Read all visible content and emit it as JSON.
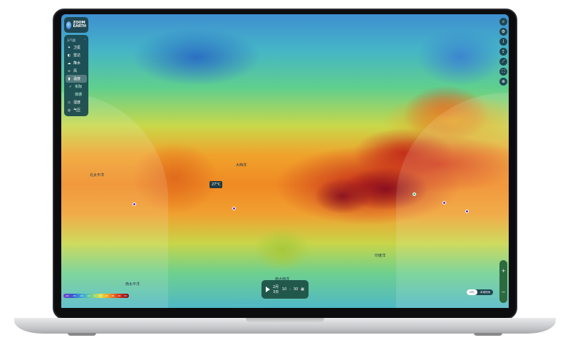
{
  "app": {
    "logo_line1": "ZOOM",
    "logo_line2": "EARTH"
  },
  "sidebar": {
    "header": "天气图",
    "items": [
      {
        "icon": "satellite-icon",
        "glyph": "✦",
        "label": "卫星"
      },
      {
        "icon": "radar-icon",
        "glyph": "◐",
        "label": "雷达"
      },
      {
        "icon": "precipitation-icon",
        "glyph": "☁",
        "label": "降水"
      },
      {
        "icon": "wind-icon",
        "glyph": "≈",
        "label": "风"
      },
      {
        "icon": "thermometer-icon",
        "glyph": "▮",
        "label": "温度",
        "selected": true
      },
      {
        "icon": "check-icon",
        "glyph": "✓",
        "label": "实际",
        "sub": true
      },
      {
        "icon": "",
        "glyph": "",
        "label": "体感",
        "sub": true
      },
      {
        "icon": "humidity-icon",
        "glyph": "◇",
        "label": "湿度"
      },
      {
        "icon": "pressure-icon",
        "glyph": "◎",
        "label": "气压"
      }
    ]
  },
  "right_toolbar": [
    {
      "icon": "search-icon",
      "glyph": "⌕"
    },
    {
      "icon": "settings-icon",
      "glyph": "⚙"
    },
    {
      "icon": "info-icon",
      "glyph": "i"
    },
    {
      "icon": "share-icon",
      "glyph": "⇪"
    },
    {
      "icon": "measure-icon",
      "glyph": "⟋"
    },
    {
      "icon": "fullscreen-icon",
      "glyph": "⛶"
    },
    {
      "icon": "locate-icon",
      "glyph": "⊕"
    }
  ],
  "map": {
    "oceans": {
      "north_pacific": "北太平洋",
      "atlantic": "大西洋",
      "south_pacific": "南太平洋",
      "indian": "印度洋",
      "south_atlantic": "南大西洋"
    },
    "tooltip": "27°C"
  },
  "legend": {
    "ticks": [
      "-40",
      "-30",
      "-20",
      "-10",
      "0",
      "10",
      "20",
      "30",
      "40",
      "50"
    ]
  },
  "time": {
    "date": "2月3日",
    "hour": "10",
    "minute": "30",
    "colon": ":"
  },
  "mode": {
    "left": "UTC",
    "right": "本地时间"
  },
  "zoom": {
    "in": "+",
    "out": "−"
  },
  "colors": {
    "panel": "#1f4752",
    "time_panel": "#22584c",
    "hot": "#8a0f1e",
    "cold": "#3e8fd0"
  }
}
